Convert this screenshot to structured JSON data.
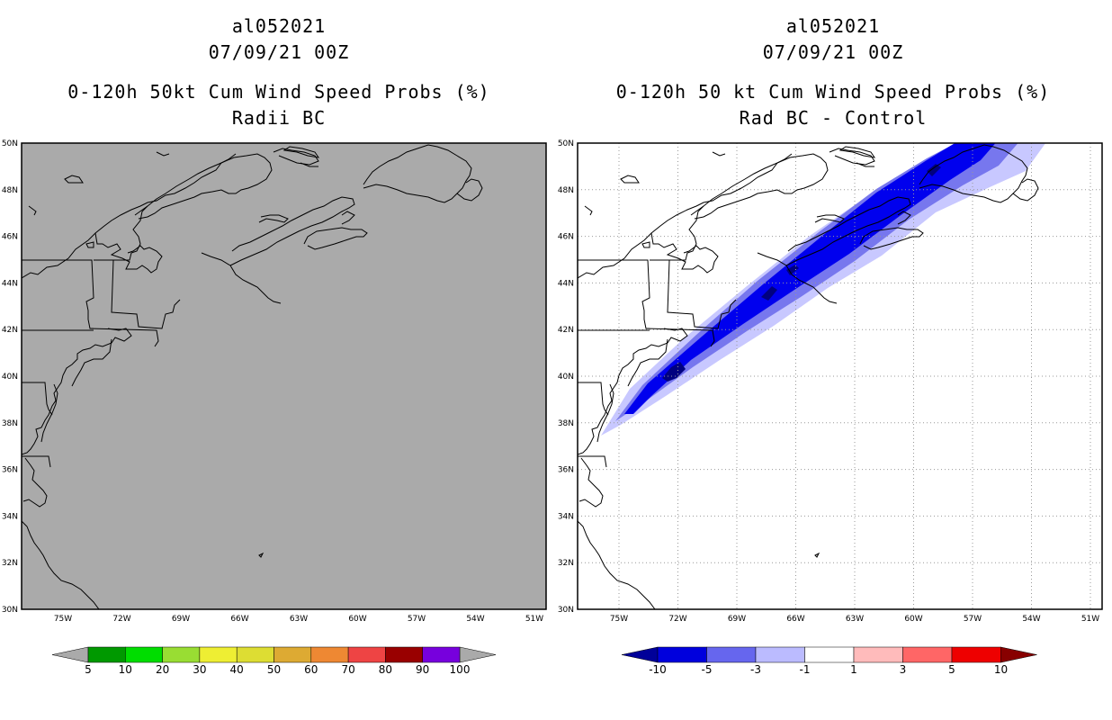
{
  "left_panel": {
    "storm_id": "al052021",
    "datetime": "07/09/21 00Z",
    "product": "0-120h 50kt Cum Wind Speed Probs (%)",
    "subtitle": "Radii BC",
    "background_color": "#aaaaaa",
    "legend": {
      "colors": [
        "#009900",
        "#00dd00",
        "#99dd33",
        "#eeee33",
        "#dddd33",
        "#ddaa33",
        "#ee8833",
        "#ee4444",
        "#990000",
        "#7700dd"
      ],
      "labels": [
        "5",
        "10",
        "20",
        "30",
        "40",
        "50",
        "60",
        "70",
        "80",
        "90",
        "100"
      ]
    }
  },
  "right_panel": {
    "storm_id": "al052021",
    "datetime": "07/09/21 00Z",
    "product": "0-120h 50 kt Cum Wind Speed Probs (%)",
    "subtitle": "Rad BC - Control",
    "background_color": "#ffffff",
    "legend": {
      "colors": [
        "#0000dd",
        "#6666ee",
        "#bbbbff",
        "#ffffff",
        "#ffbbbb",
        "#ff6666",
        "#ee0000"
      ],
      "end_colors": [
        "#000099",
        "#880000"
      ],
      "labels": [
        "-10",
        "-5",
        "-3",
        "-1",
        "1",
        "3",
        "5",
        "10"
      ]
    },
    "difference_band_colors": {
      "light": "#c8c8ff",
      "medium": "#7777ee",
      "strong": "#0000ee",
      "core": "#000080"
    }
  },
  "map": {
    "lat_labels": [
      "50N",
      "48N",
      "46N",
      "44N",
      "42N",
      "40N",
      "38N",
      "36N",
      "34N",
      "32N",
      "30N"
    ],
    "lon_labels": [
      "75W",
      "72W",
      "69W",
      "66W",
      "63W",
      "60W",
      "57W",
      "54W",
      "51W"
    ]
  }
}
